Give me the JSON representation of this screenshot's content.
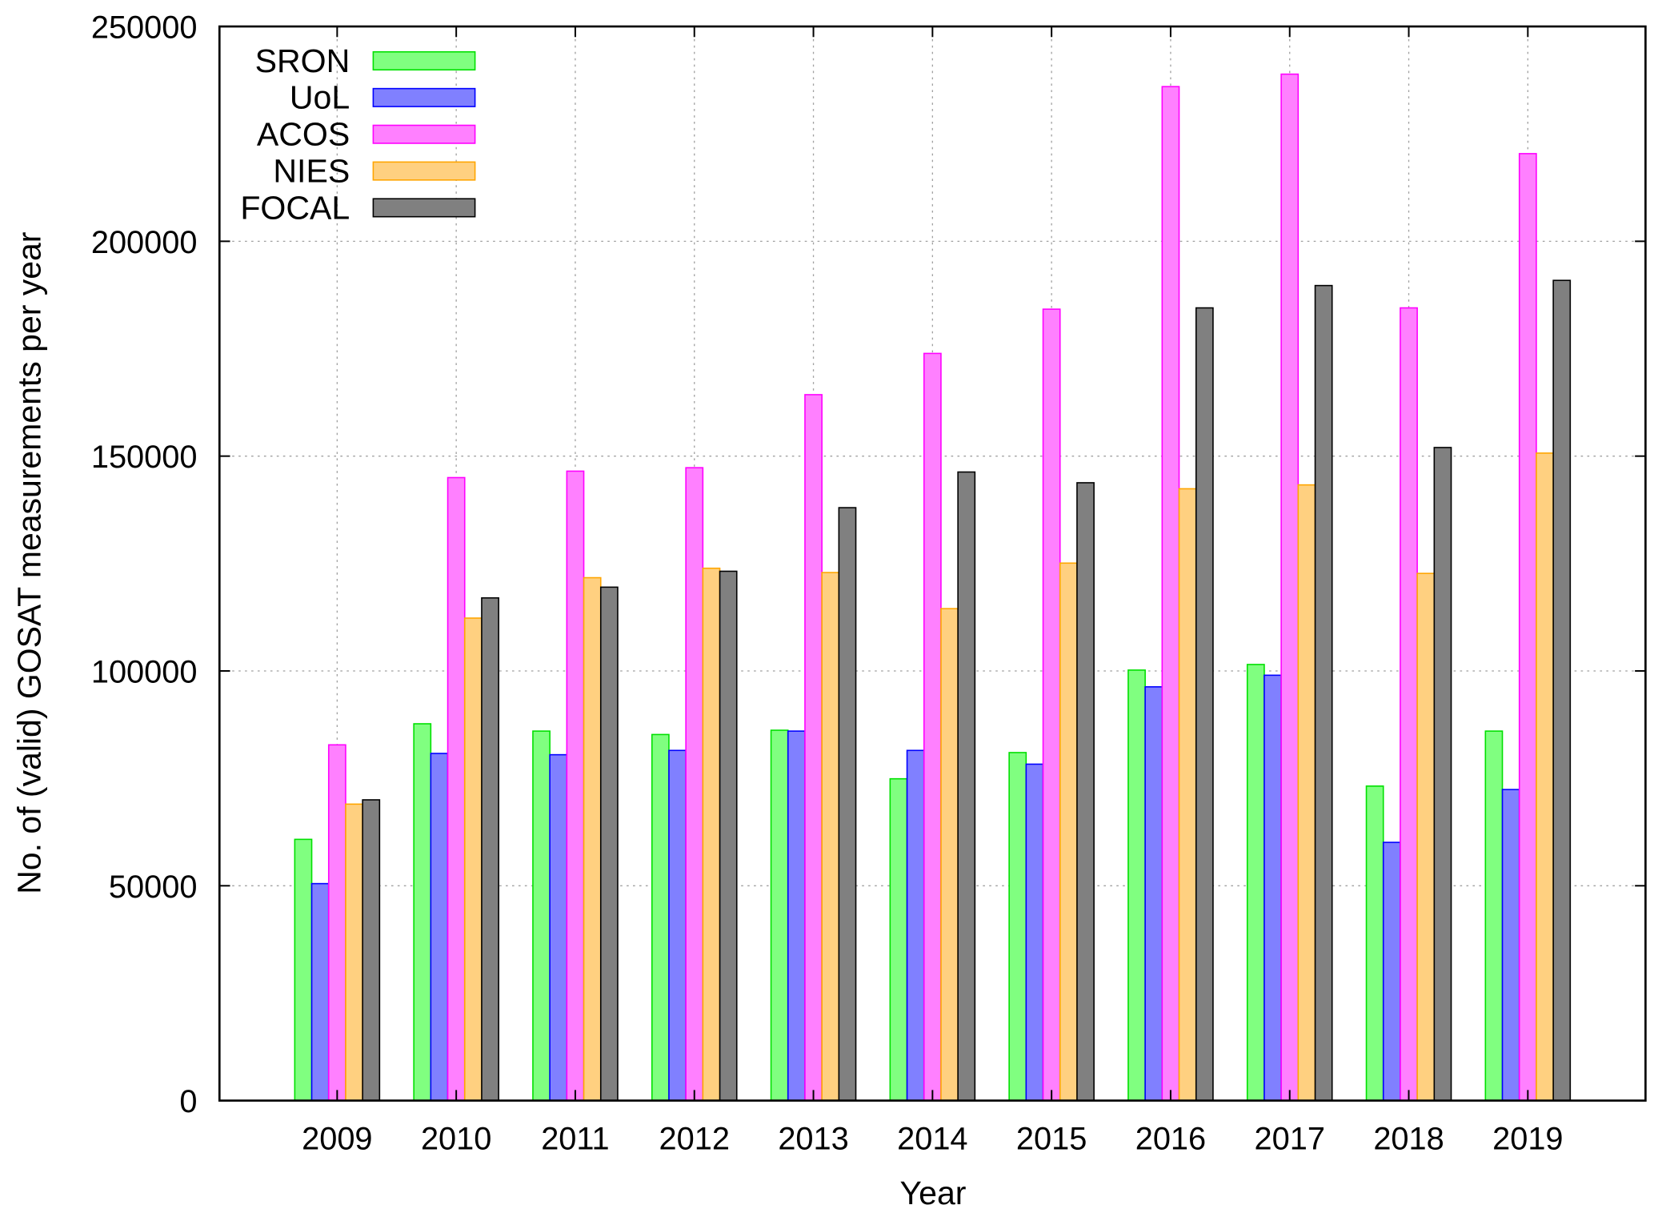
{
  "chart_data": {
    "type": "bar",
    "title": "",
    "xlabel": "Year",
    "ylabel": "No. of (valid) GOSAT measurements per year",
    "ylim": [
      0,
      250000
    ],
    "yticks": [
      0,
      50000,
      100000,
      150000,
      200000,
      250000
    ],
    "ytick_labels": [
      "0",
      "50000",
      "100000",
      "150000",
      "200000",
      "250000"
    ],
    "grid": true,
    "legend_position": "top-left",
    "categories": [
      "2009",
      "2010",
      "2011",
      "2012",
      "2013",
      "2014",
      "2015",
      "2016",
      "2017",
      "2018",
      "2019"
    ],
    "series": [
      {
        "name": "SRON",
        "fill": "#80ff80",
        "stroke": "#00e000",
        "values": [
          60800,
          87700,
          86000,
          85200,
          86200,
          74900,
          81000,
          100200,
          101500,
          73200,
          86000
        ]
      },
      {
        "name": "UoL",
        "fill": "#8080ff",
        "stroke": "#0000ff",
        "values": [
          50500,
          80800,
          80500,
          81500,
          86000,
          81500,
          78300,
          96300,
          99000,
          60100,
          72400
        ]
      },
      {
        "name": "ACOS",
        "fill": "#ff80ff",
        "stroke": "#ff00ff",
        "values": [
          82800,
          145000,
          146500,
          147300,
          164300,
          173900,
          184200,
          236000,
          238900,
          184500,
          220400
        ]
      },
      {
        "name": "NIES",
        "fill": "#ffd080",
        "stroke": "#ffa500",
        "values": [
          69000,
          112300,
          121700,
          123900,
          122900,
          114500,
          125100,
          142400,
          143300,
          122700,
          150700
        ]
      },
      {
        "name": "FOCAL",
        "fill": "#808080",
        "stroke": "#000000",
        "values": [
          70000,
          117000,
          119500,
          123200,
          138000,
          146300,
          143800,
          184500,
          189700,
          152000,
          190900
        ]
      }
    ]
  }
}
